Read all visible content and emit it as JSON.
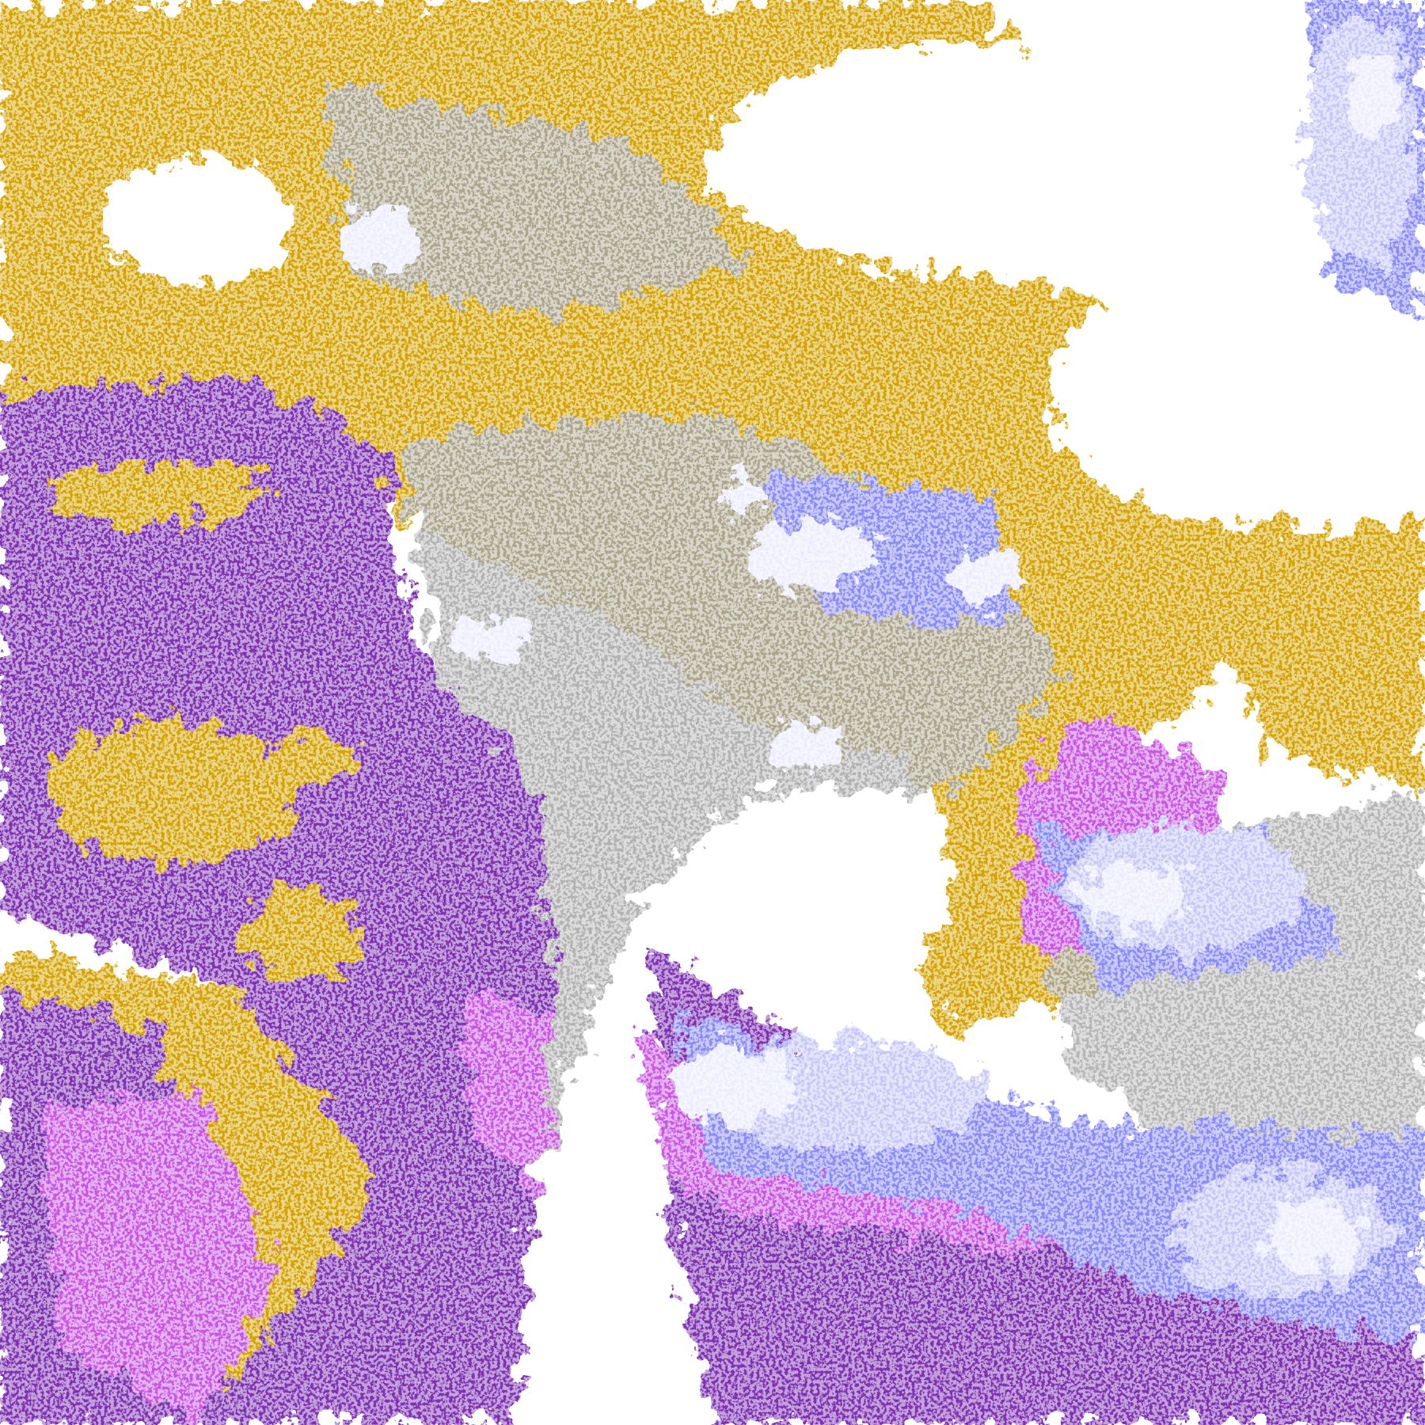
{
  "image": {
    "kind": "classified satellite cloud imagery",
    "palette": {
      "clear": "#ffffff",
      "gold": "#d4a300",
      "dark_gold": "#b88a00",
      "purple": "#7e30b2",
      "magenta": "#c856e0",
      "periwinkle": "#8a8cf5",
      "lavender": "#c8c8f8",
      "pale": "#ececff",
      "gray": "#a4a4a4"
    }
  }
}
